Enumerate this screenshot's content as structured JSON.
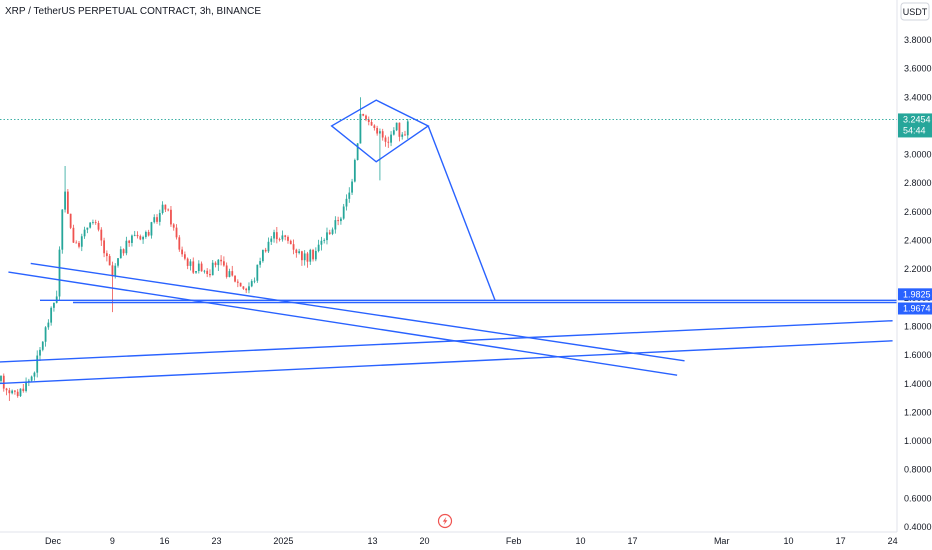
{
  "header": {
    "title": "XRP / TetherUS PERPETUAL CONTRACT, 3h, BINANCE",
    "currency_button": "USDT"
  },
  "colors": {
    "up": "#26a69a",
    "down": "#ef5350",
    "drawing": "#2962ff",
    "price_tag": "#26a69a",
    "level_tag": "#2962ff",
    "axis_text": "#131722",
    "axis_line": "#e0e3eb"
  },
  "icons": {
    "scroll_badge": "lightning-icon"
  },
  "price_tag": {
    "value": "3.2454",
    "countdown": "54:44"
  },
  "level_tags": [
    "1.9825",
    "1.9674"
  ],
  "chart_data": {
    "type": "candlestick",
    "symbol": "XRP / TetherUS PERPETUAL CONTRACT",
    "interval": "3h",
    "exchange": "BINANCE",
    "y_unit": "USDT",
    "ylim": [
      0.4,
      4.0
    ],
    "y_ticks": [
      "0.4000",
      "0.6000",
      "0.8000",
      "1.0000",
      "1.2000",
      "1.4000",
      "1.6000",
      "1.8000",
      "2.0000",
      "2.2000",
      "2.4000",
      "2.6000",
      "2.8000",
      "3.0000",
      "3.2000",
      "3.4000",
      "3.6000",
      "3.8000"
    ],
    "x_ticks": [
      {
        "label": "Dec",
        "day": 0
      },
      {
        "label": "9",
        "day": 8
      },
      {
        "label": "16",
        "day": 15
      },
      {
        "label": "23",
        "day": 22
      },
      {
        "label": "2025",
        "day": 31
      },
      {
        "label": "13",
        "day": 43
      },
      {
        "label": "20",
        "day": 50
      },
      {
        "label": "Feb",
        "day": 62
      },
      {
        "label": "10",
        "day": 71
      },
      {
        "label": "17",
        "day": 78
      },
      {
        "label": "Mar",
        "day": 90
      },
      {
        "label": "10",
        "day": 99
      },
      {
        "label": "17",
        "day": 106
      },
      {
        "label": "24",
        "day": 113
      }
    ],
    "price_path": [
      [
        -7,
        1.42
      ],
      [
        -6,
        1.36
      ],
      [
        -5,
        1.32
      ],
      [
        -4,
        1.38
      ],
      [
        -3,
        1.44
      ],
      [
        -2,
        1.58
      ],
      [
        -1,
        1.78
      ],
      [
        0,
        1.95
      ],
      [
        0.6,
        2.05
      ],
      [
        1,
        2.45
      ],
      [
        1.5,
        2.75
      ],
      [
        2,
        2.62
      ],
      [
        2.5,
        2.45
      ],
      [
        3,
        2.35
      ],
      [
        4,
        2.42
      ],
      [
        5,
        2.55
      ],
      [
        6,
        2.48
      ],
      [
        7,
        2.3
      ],
      [
        8,
        2.15
      ],
      [
        9,
        2.3
      ],
      [
        10,
        2.38
      ],
      [
        11,
        2.45
      ],
      [
        12,
        2.42
      ],
      [
        13,
        2.48
      ],
      [
        14,
        2.55
      ],
      [
        15,
        2.65
      ],
      [
        16,
        2.52
      ],
      [
        17,
        2.35
      ],
      [
        18,
        2.25
      ],
      [
        19,
        2.2
      ],
      [
        20,
        2.22
      ],
      [
        21,
        2.18
      ],
      [
        22,
        2.25
      ],
      [
        23,
        2.2
      ],
      [
        24,
        2.15
      ],
      [
        25,
        2.1
      ],
      [
        26,
        2.06
      ],
      [
        27,
        2.12
      ],
      [
        28,
        2.3
      ],
      [
        29,
        2.4
      ],
      [
        30,
        2.45
      ],
      [
        31,
        2.42
      ],
      [
        32,
        2.38
      ],
      [
        33,
        2.32
      ],
      [
        34,
        2.28
      ],
      [
        35,
        2.3
      ],
      [
        36,
        2.38
      ],
      [
        37,
        2.45
      ],
      [
        38,
        2.52
      ],
      [
        39,
        2.6
      ],
      [
        40,
        2.75
      ],
      [
        40.5,
        2.95
      ],
      [
        41,
        3.1
      ],
      [
        41.5,
        3.35
      ],
      [
        42,
        3.25
      ],
      [
        43,
        3.2
      ],
      [
        44,
        3.15
      ],
      [
        45,
        3.05
      ],
      [
        46,
        3.22
      ],
      [
        47,
        3.12
      ],
      [
        48,
        3.25
      ]
    ],
    "wicks": [
      {
        "day": 1.5,
        "high": 2.92
      },
      {
        "day": 41.5,
        "high": 3.4
      },
      {
        "day": 44,
        "low": 2.82
      },
      {
        "day": 8,
        "low": 1.9
      },
      {
        "day": -6,
        "low": 1.28
      }
    ],
    "current_price": 3.2454,
    "drawings": {
      "horizontal_levels": [
        1.9825,
        1.9674
      ],
      "diamond_pattern": {
        "top": [
          43.5,
          3.38
        ],
        "bottom": [
          43.5,
          2.95
        ],
        "left": [
          37.5,
          3.2
        ],
        "right": [
          50.5,
          3.2
        ]
      },
      "projection_line": {
        "from": [
          50.5,
          3.2
        ],
        "to": [
          59.5,
          1.9825
        ]
      },
      "descending_trendlines": [
        {
          "from": [
            -3,
            2.24
          ],
          "to": [
            85,
            1.56
          ]
        },
        {
          "from": [
            -6,
            2.18
          ],
          "to": [
            84,
            1.46
          ]
        }
      ],
      "ascending_trendlines": [
        {
          "from": [
            -8,
            1.55
          ],
          "to": [
            113,
            1.84
          ]
        },
        {
          "from": [
            -8,
            1.4
          ],
          "to": [
            113,
            1.7
          ]
        }
      ]
    }
  }
}
